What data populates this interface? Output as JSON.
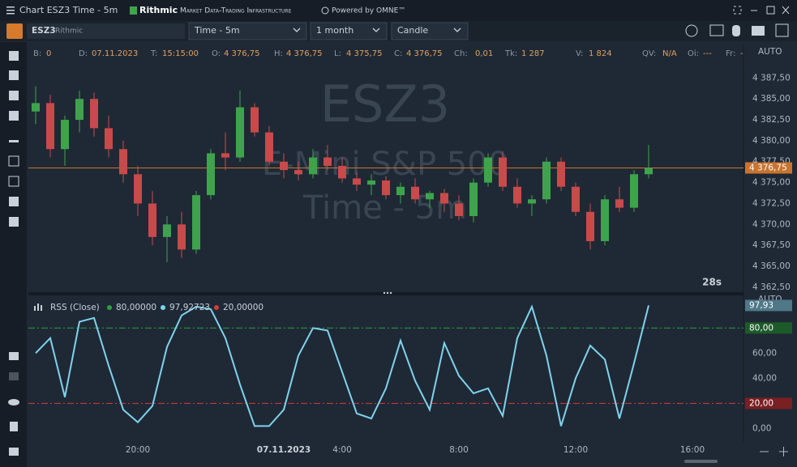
{
  "window": {
    "title": "Chart ESZ3 Time - 5m",
    "brand": "Rithmic",
    "brand_tagline": "Market Data-Trading Infrastructure",
    "powered": "Powered by OMNE™"
  },
  "toolbar": {
    "symbol": "ESZ3",
    "connection": "Rithmic",
    "aggregation": "Time - 5m",
    "period": "1 month",
    "style": "Candle"
  },
  "info_bar": [
    {
      "label": "B:",
      "value": "0"
    },
    {
      "label": "D:",
      "value": "07.11.2023"
    },
    {
      "label": "T:",
      "value": "15:15:00"
    },
    {
      "label": "O:",
      "value": "4 376,75"
    },
    {
      "label": "H:",
      "value": "4 376,75"
    },
    {
      "label": "L:",
      "value": "4 375,75"
    },
    {
      "label": "C:",
      "value": "4 376,75"
    },
    {
      "label": "Ch:",
      "value": "0,01"
    },
    {
      "label": "Tk:",
      "value": "1 287"
    },
    {
      "label": "V:",
      "value": "1 824"
    },
    {
      "label": "QV:",
      "value": "N/A"
    },
    {
      "label": "Oi:",
      "value": "---"
    },
    {
      "label": "Fr:",
      "value": "-"
    }
  ],
  "watermark": {
    "symbol": "ESZ3",
    "description": "E-Mini S&P 500",
    "aggregation": "Time - 5m"
  },
  "countdown": "28s",
  "chart_data": [
    {
      "type": "candlestick",
      "scale": "AUTO",
      "up_color": "#3fa34d",
      "down_color": "#c84a4a",
      "open": [
        4383.5,
        4384.5,
        4379,
        4382.5,
        4385,
        4381.5,
        4379,
        4376,
        4372.5,
        4368.5,
        4370,
        4367,
        4373.5,
        4378.5,
        4378,
        4384,
        4381,
        4377.5,
        4376.5,
        4376,
        4378,
        4377,
        4375.5,
        4374.75,
        4375.25,
        4373.5,
        4374.5,
        4373,
        4373.75,
        4372.5,
        4371,
        4375,
        4378,
        4374.5,
        4372.5,
        4373,
        4377.5,
        4374.5,
        4371.5,
        4368,
        4373,
        4372,
        4376
      ],
      "high": [
        4386.5,
        4385.5,
        4383,
        4386,
        4385.75,
        4383,
        4380,
        4377,
        4374,
        4371,
        4371.5,
        4374,
        4379,
        4381,
        4386,
        4384.5,
        4381.75,
        4378.5,
        4377.5,
        4379,
        4379.5,
        4378,
        4376.25,
        4376,
        4375.75,
        4375,
        4375.5,
        4374,
        4374.25,
        4373.5,
        4375.5,
        4378.5,
        4378.75,
        4375.5,
        4373.5,
        4378,
        4378,
        4375,
        4372.5,
        4373.5,
        4374.5,
        4376.5,
        4379.5
      ],
      "low": [
        4382,
        4378,
        4377,
        4381,
        4380.5,
        4378,
        4375,
        4371,
        4367.5,
        4365.5,
        4366,
        4366.5,
        4373,
        4376.5,
        4377.5,
        4380.5,
        4377,
        4375.5,
        4375.25,
        4375.5,
        4376.5,
        4375,
        4374,
        4373.5,
        4373,
        4372.5,
        4372.5,
        4372,
        4371.5,
        4370.5,
        4370.25,
        4374.5,
        4374,
        4372,
        4371,
        4372.5,
        4374,
        4371,
        4367,
        4367.5,
        4371.5,
        4371.5,
        4375.5
      ],
      "close": [
        4384.5,
        4379,
        4382.5,
        4385,
        4381.5,
        4379,
        4376,
        4372.5,
        4368.5,
        4370,
        4367,
        4373.5,
        4378.5,
        4378,
        4384,
        4381,
        4377.5,
        4376.5,
        4376,
        4378,
        4377,
        4375.5,
        4374.75,
        4375.25,
        4373.5,
        4374.5,
        4373,
        4373.75,
        4372.5,
        4371,
        4375,
        4378,
        4374.5,
        4372.5,
        4373,
        4377.5,
        4374.5,
        4371.5,
        4368,
        4373,
        4372,
        4376,
        4376.75
      ],
      "last_price": {
        "value": 4376.75,
        "label": "4 376,75",
        "color": "#c8742f"
      },
      "xlim": [
        -0.5,
        48.5
      ],
      "ylim": [
        4362,
        4391.5
      ],
      "yticks": [
        {
          "value": 4362.5,
          "label": "4 362,50"
        },
        {
          "value": 4365,
          "label": "4 365,00"
        },
        {
          "value": 4367.5,
          "label": "4 367,50"
        },
        {
          "value": 4370,
          "label": "4 370,00"
        },
        {
          "value": 4372.5,
          "label": "4 372,50"
        },
        {
          "value": 4375,
          "label": "4 375,00"
        },
        {
          "value": 4377.5,
          "label": "4 377,50"
        },
        {
          "value": 4380,
          "label": "4 380,00"
        },
        {
          "value": 4382.5,
          "label": "4 382,50"
        },
        {
          "value": 4385,
          "label": "4 385,00"
        },
        {
          "value": 4387.5,
          "label": "4 387,50"
        }
      ]
    },
    {
      "type": "line",
      "scale": "AUTO",
      "name": "RSS (Close)",
      "color": "#7fd3ee",
      "legend": [
        {
          "label": "80,00000",
          "color": "#2f9e44"
        },
        {
          "label": "97,92723",
          "color": "#7fd3ee"
        },
        {
          "label": "20,00000",
          "color": "#d63a3a"
        }
      ],
      "values": [
        60,
        72,
        25,
        85,
        88,
        50,
        15,
        5,
        18,
        65,
        90,
        97,
        95,
        72,
        35,
        2,
        2,
        15,
        58,
        80,
        78,
        45,
        12,
        8,
        32,
        70,
        38,
        15,
        68,
        42,
        28,
        32,
        10,
        72,
        97,
        58,
        2,
        40,
        66,
        55,
        8,
        52,
        97.93
      ],
      "last_value": {
        "value": 97.93,
        "label": "97,93",
        "color": "#4f7888"
      },
      "levels": [
        {
          "value": 80,
          "label": "80,00",
          "color": "#2f9e44",
          "badge": "#1d5a2a"
        },
        {
          "value": 20,
          "label": "20,00",
          "color": "#d63a3a",
          "badge": "#7a1f22"
        }
      ],
      "xlim": [
        -0.5,
        48.5
      ],
      "ylim": [
        -10,
        104
      ],
      "yticks": [
        {
          "value": 0,
          "label": "0,00"
        },
        {
          "value": 40,
          "label": "40,00"
        },
        {
          "value": 60,
          "label": "60,00"
        }
      ],
      "xticks": [
        {
          "value": 7,
          "label": "20:00"
        },
        {
          "value": 17,
          "label": "07.11.2023"
        },
        {
          "value": 21,
          "label": "4:00"
        },
        {
          "value": 29,
          "label": "8:00"
        },
        {
          "value": 37,
          "label": "12:00"
        },
        {
          "value": 45,
          "label": "16:00"
        }
      ]
    }
  ]
}
